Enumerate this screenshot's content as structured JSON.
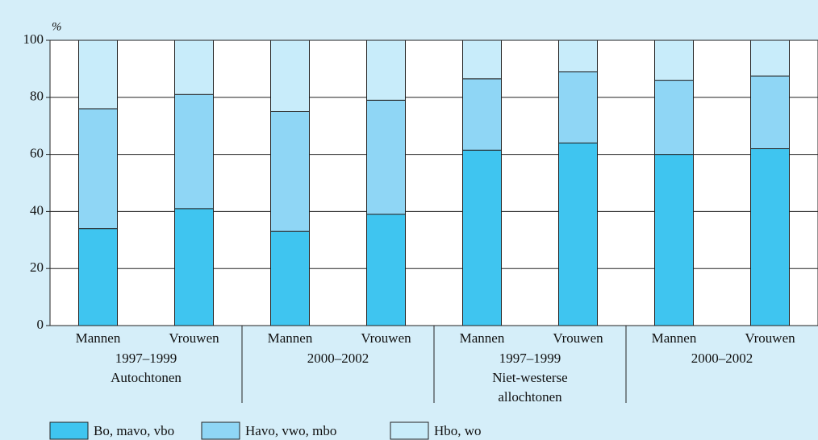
{
  "chart_data": {
    "type": "stacked_bar",
    "y_unit": "%",
    "categories": [
      "Mannen",
      "Vrouwen",
      "Mannen",
      "Vrouwen",
      "Mannen",
      "Vrouwen",
      "Mannen",
      "Vrouwen"
    ],
    "groups": [
      [
        "1997–1999",
        "Autochtonen"
      ],
      [
        "2000–2002"
      ],
      [
        "1997–1999",
        "Niet-westerse",
        "allochtonen"
      ],
      [
        "2000–2002"
      ]
    ],
    "series": [
      {
        "name": "Bo, mavo, vbo",
        "color": "#3fc5f0",
        "values": [
          34,
          41,
          33,
          39,
          61.5,
          64,
          60,
          62
        ]
      },
      {
        "name": "Havo, vwo, mbo",
        "color": "#8fd6f5",
        "values": [
          42,
          40,
          42,
          40,
          25,
          25,
          26,
          25.5
        ]
      },
      {
        "name": "Hbo, wo",
        "color": "#c8ecfa",
        "values": [
          24,
          19,
          25,
          21,
          13.5,
          11,
          14,
          12.5
        ]
      }
    ],
    "ylim": [
      0,
      100
    ],
    "yticks": [
      0,
      20,
      40,
      60,
      80,
      100
    ],
    "grid": true
  }
}
